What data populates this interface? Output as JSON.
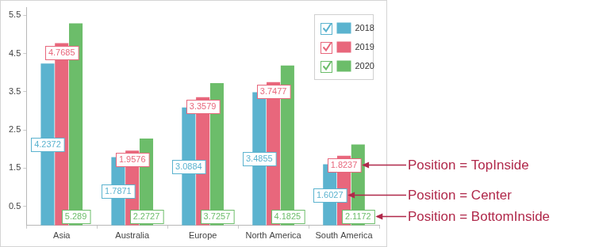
{
  "chart_data": {
    "type": "bar",
    "categories": [
      "Asia",
      "Australia",
      "Europe",
      "North America",
      "South America"
    ],
    "series": [
      {
        "name": "2018",
        "color": "#5bb3cf",
        "values": [
          4.2372,
          1.7871,
          3.0884,
          3.4855,
          1.6027
        ]
      },
      {
        "name": "2019",
        "color": "#e8677c",
        "values": [
          4.7685,
          1.9576,
          3.3579,
          3.7477,
          1.8237
        ]
      },
      {
        "name": "2020",
        "color": "#6cbd6a",
        "values": [
          5.289,
          2.2727,
          3.7257,
          4.1825,
          2.1172
        ]
      }
    ],
    "ylim": [
      0,
      5.7
    ],
    "yticks": [
      0.5,
      1.5,
      2.5,
      3.5,
      4.5,
      5.5
    ],
    "grid": false,
    "legend": "top-right",
    "data_labels": true,
    "annotations": [
      {
        "text": "Position = TopInside",
        "series": "2019"
      },
      {
        "text": "Position = Center",
        "series": "2018"
      },
      {
        "text": "Position = BottomInside",
        "series": "2020"
      }
    ]
  }
}
